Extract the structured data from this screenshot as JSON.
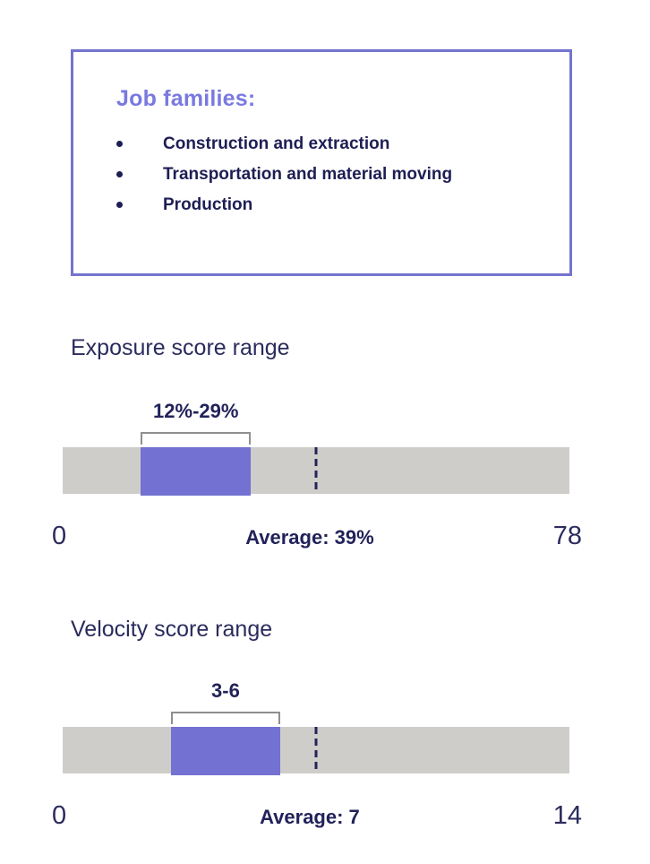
{
  "colors": {
    "accent_purple": "#7371d1",
    "box_border_purple": "#7473ce",
    "heading_purple": "#7a79e0",
    "navy_text": "#22225a",
    "track_gray": "#cecdc9",
    "bracket_gray": "#8f8f8f"
  },
  "job_families": {
    "title": "Job families:",
    "items": [
      "Construction and extraction",
      "Transportation and material moving",
      "Production"
    ]
  },
  "chart_data": [
    {
      "type": "range-bar",
      "title": "Exposure score range",
      "range_label": "12%-29%",
      "range_min": 12,
      "range_max": 29,
      "axis_min": 0,
      "axis_max": 78,
      "axis_min_label": "0",
      "axis_max_label": "78",
      "average": 39,
      "average_label": "Average: 39%",
      "layout": "horizontal bar 0-78, purple segment 12-29, dashed average marker at 39"
    },
    {
      "type": "range-bar",
      "title": "Velocity score range",
      "range_label": "3-6",
      "range_min": 3,
      "range_max": 6,
      "axis_min": 0,
      "axis_max": 14,
      "axis_min_label": "0",
      "axis_max_label": "14",
      "average": 7,
      "average_label": "Average: 7",
      "layout": "horizontal bar 0-14, purple segment 3-6, dashed average marker at 7"
    }
  ]
}
